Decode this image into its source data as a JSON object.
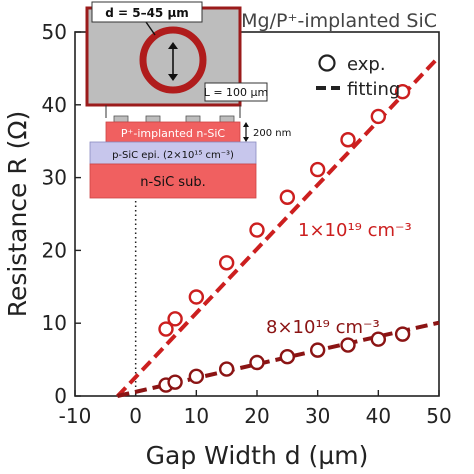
{
  "chart_data": {
    "type": "scatter",
    "title": "Mg/P⁺-implanted SiC",
    "xlabel": "Gap Width d (µm)",
    "ylabel": "Resistance R (Ω)",
    "xlim": [
      -10,
      50
    ],
    "ylim": [
      0,
      50
    ],
    "xticks": [
      -10,
      0,
      10,
      20,
      30,
      40,
      50
    ],
    "yticks": [
      0,
      10,
      20,
      30,
      40,
      50
    ],
    "grid": false,
    "legend": {
      "position": "top-right",
      "items": [
        {
          "label": "exp.",
          "marker": "open-circle"
        },
        {
          "label": "fitting",
          "marker": "dashed-line"
        }
      ]
    },
    "series": [
      {
        "name": "1×10¹⁹ cm⁻³",
        "color": "#cc1f1f",
        "points": [
          [
            5,
            9.2
          ],
          [
            6.5,
            10.6
          ],
          [
            10,
            13.6
          ],
          [
            15,
            18.3
          ],
          [
            20,
            22.8
          ],
          [
            25,
            27.3
          ],
          [
            30,
            31.1
          ],
          [
            35,
            35.2
          ],
          [
            40,
            38.4
          ],
          [
            44,
            41.8
          ]
        ],
        "fit": {
          "x0": -3,
          "x1": 50,
          "slope": 0.88,
          "intercept": 2.6
        }
      },
      {
        "name": "8×10¹⁹ cm⁻³",
        "color": "#8b1414",
        "points": [
          [
            5,
            1.5
          ],
          [
            6.5,
            1.9
          ],
          [
            10,
            2.7
          ],
          [
            15,
            3.7
          ],
          [
            20,
            4.6
          ],
          [
            25,
            5.4
          ],
          [
            30,
            6.3
          ],
          [
            35,
            7.0
          ],
          [
            40,
            7.8
          ],
          [
            44,
            8.5
          ]
        ],
        "fit": {
          "x0": -3,
          "x1": 50,
          "slope": 0.19,
          "intercept": 0.57
        }
      }
    ],
    "reference_line": {
      "x": 0,
      "style": "dotted"
    }
  },
  "inset": {
    "d_label": "d = 5–45 µm",
    "L_label": "L = 100 µm",
    "layer_thickness": "200 nm",
    "layer_implant": "P⁺-implanted n-SiC",
    "layer_epi": "p-SiC epi. (2×10¹⁵ cm⁻³)",
    "layer_sub": "n-SiC sub."
  },
  "colors": {
    "series_1": "#cc1f1f",
    "series_2": "#8b1414",
    "implant_layer": "#f06060",
    "epi_layer": "#c7c6ec",
    "substrate": "#f06060",
    "contact": "#bdbdbd"
  }
}
